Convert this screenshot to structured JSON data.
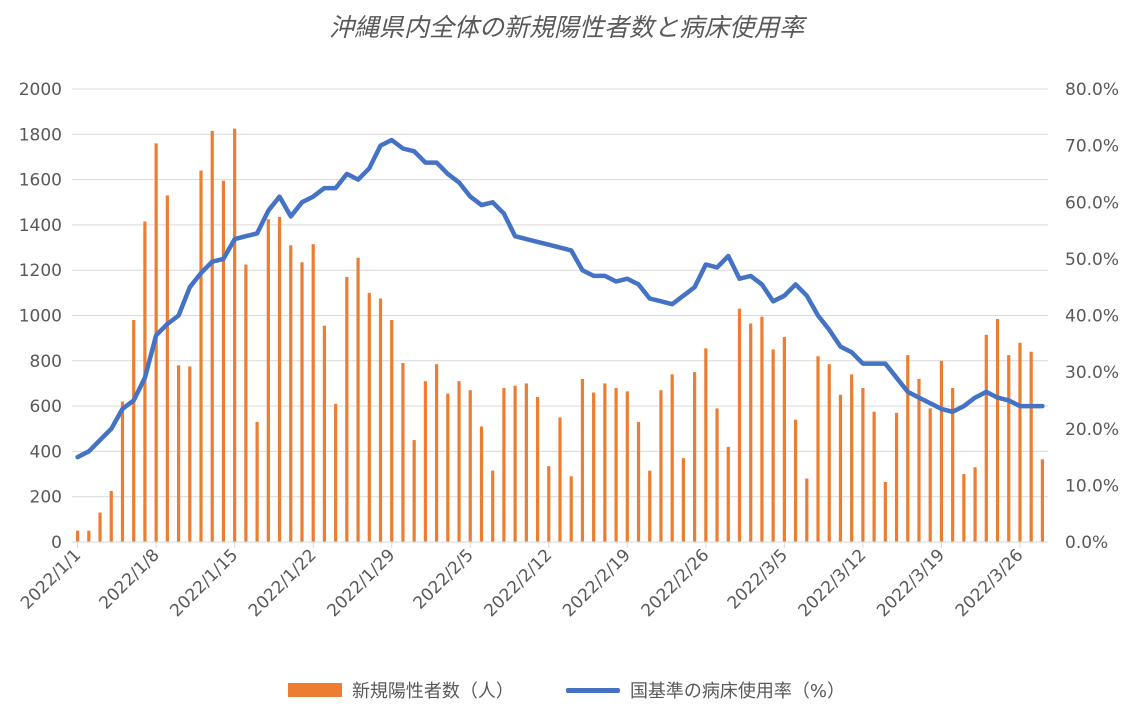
{
  "title": "沖縄県内全体の新規陽性者数と病床使用率",
  "colors": {
    "bars": "#ED7D31",
    "line": "#4472C4",
    "grid": "#d9d9d9",
    "text": "#595959"
  },
  "chart_data": {
    "type": "bar+line",
    "title": "沖縄県内全体の新規陽性者数と病床使用率",
    "ylim_left": [
      0,
      2000
    ],
    "yticks_left": [
      "0",
      "200",
      "400",
      "600",
      "800",
      "1000",
      "1200",
      "1400",
      "1600",
      "1800",
      "2000"
    ],
    "ylim_right": [
      0,
      80
    ],
    "yticks_right": [
      "0.0%",
      "10.0%",
      "20.0%",
      "30.0%",
      "40.0%",
      "50.0%",
      "60.0%",
      "70.0%",
      "80.0%"
    ],
    "x_tick_labels": [
      "2022/1/1",
      "2022/1/8",
      "2022/1/15",
      "2022/1/22",
      "2022/1/29",
      "2022/2/5",
      "2022/2/12",
      "2022/2/19",
      "2022/2/26",
      "2022/3/5",
      "2022/3/12",
      "2022/3/19",
      "2022/3/26"
    ],
    "grid": true,
    "legend_position": "bottom",
    "series": [
      {
        "name": "新規陽性者数（人）",
        "type": "bar",
        "x_start": "2022/1/1",
        "values": [
          50,
          50,
          130,
          225,
          620,
          980,
          1415,
          1760,
          1530,
          780,
          775,
          1640,
          1815,
          1595,
          1825,
          1225,
          530,
          1425,
          1435,
          1310,
          1235,
          1315,
          955,
          610,
          1170,
          1255,
          1100,
          1075,
          980,
          790,
          450,
          710,
          785,
          655,
          710,
          670,
          510,
          315,
          680,
          690,
          700,
          640,
          335,
          550,
          290,
          720,
          660,
          700,
          680,
          665,
          530,
          315,
          670,
          740,
          370,
          750,
          855,
          590,
          420,
          1030,
          965,
          995,
          850,
          905,
          540,
          280,
          820,
          785,
          650,
          740,
          680,
          575,
          265,
          570,
          825,
          720,
          590,
          800,
          680,
          300,
          330,
          915,
          985,
          825,
          880,
          840,
          365
        ]
      },
      {
        "name": "国基準の病床使用率（%）",
        "type": "line",
        "x_start": "2022/1/1",
        "values": [
          15.0,
          16.0,
          18.0,
          20.0,
          23.5,
          25.0,
          29.0,
          36.5,
          38.5,
          40.0,
          45.0,
          47.5,
          49.5,
          50.0,
          53.5,
          54.0,
          54.5,
          58.5,
          61.0,
          57.5,
          60.0,
          61.0,
          62.5,
          62.5,
          65.0,
          64.0,
          66.0,
          70.0,
          71.0,
          69.5,
          69.0,
          67.0,
          67.0,
          65.0,
          63.5,
          61.0,
          59.5,
          60.0,
          58.0,
          54.0,
          53.5,
          53.0,
          52.5,
          52.0,
          51.5,
          48.0,
          47.0,
          47.0,
          46.0,
          46.5,
          45.5,
          43.0,
          42.5,
          42.0,
          43.5,
          45.0,
          49.0,
          48.5,
          50.5,
          46.5,
          47.0,
          45.5,
          42.5,
          43.5,
          45.5,
          43.5,
          40.0,
          37.5,
          34.5,
          33.5,
          31.5,
          31.5,
          31.5,
          29.0,
          26.5,
          25.5,
          24.5,
          23.5,
          23.0,
          24.0,
          25.5,
          26.5,
          25.5,
          25.0,
          24.0,
          24.0,
          24.0
        ]
      }
    ]
  }
}
